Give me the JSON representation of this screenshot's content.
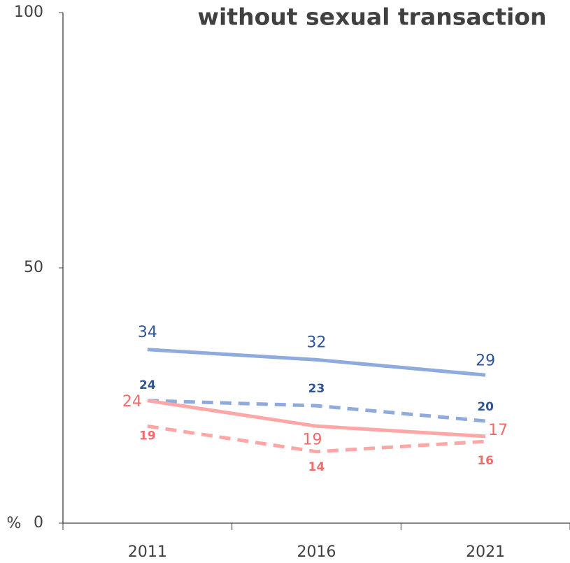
{
  "chart_data": {
    "type": "line",
    "title": "without sexual transaction",
    "ylabel": "%",
    "categories": [
      "2011",
      "2016",
      "2021"
    ],
    "series": [
      {
        "color": "#8faadc",
        "label_color": "#2f5597",
        "dash": false,
        "values": [
          34,
          32,
          29
        ]
      },
      {
        "color": "#8faadc",
        "label_color": "#2f5597",
        "dash": true,
        "values": [
          24,
          23,
          20
        ]
      },
      {
        "color": "#ffa7a7",
        "label_color": "#f26b6b",
        "dash": false,
        "values": [
          24,
          19,
          17
        ]
      },
      {
        "color": "#ffa7a7",
        "label_color": "#f26b6b",
        "dash": true,
        "values": [
          19,
          14,
          16
        ]
      }
    ],
    "ylim": [
      0,
      100
    ],
    "yticks": [
      0,
      50,
      100
    ],
    "grid": false
  }
}
